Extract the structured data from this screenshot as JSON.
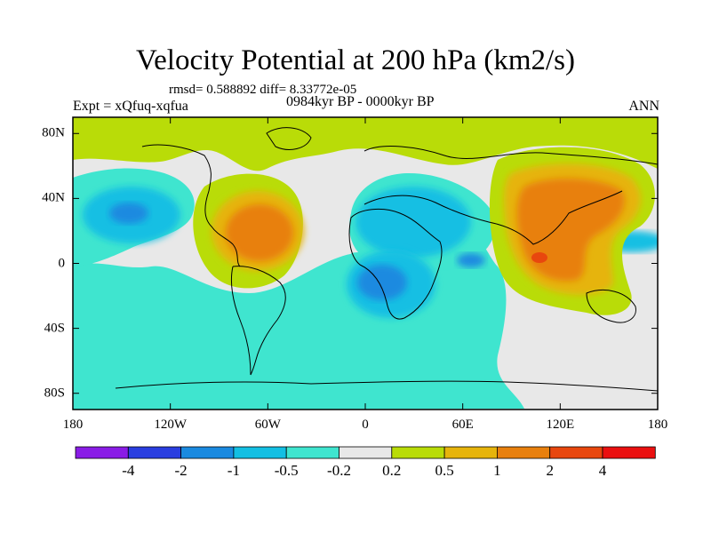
{
  "title": "Velocity Potential at 200 hPa (km2/s)",
  "stats": "rmsd= 0.588892 diff= 8.33772e-05",
  "experiment": "Expt = xQfuq-xqfua",
  "period": "0984kyr BP - 0000kyr BP",
  "season": "ANN",
  "lat_ticks": [
    {
      "label": "80N",
      "lat": 80
    },
    {
      "label": "40N",
      "lat": 40
    },
    {
      "label": "0",
      "lat": 0
    },
    {
      "label": "40S",
      "lat": -40
    },
    {
      "label": "80S",
      "lat": -80
    }
  ],
  "lon_ticks": [
    {
      "label": "180",
      "lon": -180
    },
    {
      "label": "120W",
      "lon": -120
    },
    {
      "label": "60W",
      "lon": -60
    },
    {
      "label": "0",
      "lon": 0
    },
    {
      "label": "60E",
      "lon": 60
    },
    {
      "label": "120E",
      "lon": 120
    },
    {
      "label": "180",
      "lon": 180
    }
  ],
  "colorbar": {
    "labels": [
      "-4",
      "-2",
      "-1",
      "-0.5",
      "-0.2",
      "0.2",
      "0.5",
      "1",
      "2",
      "4"
    ],
    "colors": [
      "#8a1ce6",
      "#2a3ee0",
      "#1a8ae0",
      "#13bfe3",
      "#3fe5cf",
      "#e8e8e8",
      "#b9dc08",
      "#e6b40c",
      "#e8800e",
      "#e8470e",
      "#ea1010"
    ]
  },
  "chart_data": {
    "type": "filled-contour-map",
    "title": "Velocity Potential at 200 hPa (km2/s)",
    "variable": "velocity potential difference",
    "units": "km2/s",
    "levels": [
      -4,
      -2,
      -1,
      -0.5,
      -0.2,
      0.2,
      0.5,
      1,
      2,
      4
    ],
    "lon_range": [
      -180,
      180
    ],
    "lat_range": [
      -90,
      90
    ],
    "features": [
      {
        "name": "tropical Atlantic / Caribbean maximum",
        "lon": -60,
        "lat": 15,
        "max_level": "1 to 2"
      },
      {
        "name": "Asia / Maritime Continent maximum",
        "lon": 110,
        "lat": 25,
        "max_level": "1 to 2"
      },
      {
        "name": "Indonesia peak",
        "lon": 105,
        "lat": 0,
        "max_level": "2 to 4"
      },
      {
        "name": "central North Pacific minimum",
        "lon": -155,
        "lat": 20,
        "min_level": "-1 to -0.5"
      },
      {
        "name": "central Africa minimum",
        "lon": 15,
        "lat": -8,
        "min_level": "-1 to -0.5"
      },
      {
        "name": "Mediterranean / Middle East minimum",
        "lon": 25,
        "lat": 25,
        "min_level": "-0.5 to -0.2"
      },
      {
        "name": "Southern Ocean negative belt",
        "lon_range": [
          -180,
          90
        ],
        "lat_range": [
          -90,
          -30
        ],
        "level": "-0.5 to -0.2"
      },
      {
        "name": "Arctic positive band",
        "lon_range": [
          -180,
          180
        ],
        "lat_range": [
          70,
          90
        ],
        "level": "0.2 to 0.5"
      }
    ]
  }
}
